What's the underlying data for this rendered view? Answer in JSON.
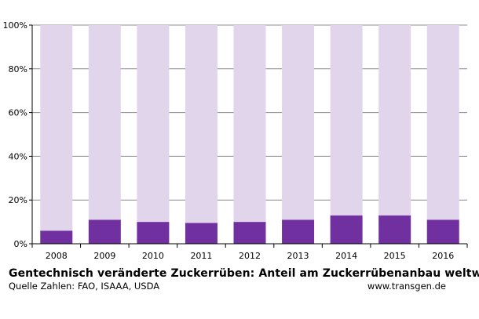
{
  "chart_data": {
    "type": "bar",
    "stacked": true,
    "categories": [
      "2008",
      "2009",
      "2010",
      "2011",
      "2012",
      "2013",
      "2014",
      "2015",
      "2016"
    ],
    "series": [
      {
        "values": [
          6,
          11,
          10,
          9.5,
          10,
          11,
          13,
          13,
          11
        ],
        "color": "#7030a0"
      },
      {
        "values": [
          94,
          89,
          90,
          90.5,
          90,
          89,
          87,
          87,
          89
        ],
        "color": "#e1d5ec"
      }
    ],
    "yticks": [
      "0%",
      "20%",
      "40%",
      "60%",
      "80%",
      "100%"
    ],
    "ylim": [
      0,
      100
    ],
    "grid": true
  },
  "footer": {
    "title": "Gentechnisch veränderte Zuckerrüben: Anteil am Zuckerrübenanbau weltweit",
    "source": "Quelle Zahlen: FAO, ISAAA, USDA",
    "website": "www.transgen.de"
  }
}
